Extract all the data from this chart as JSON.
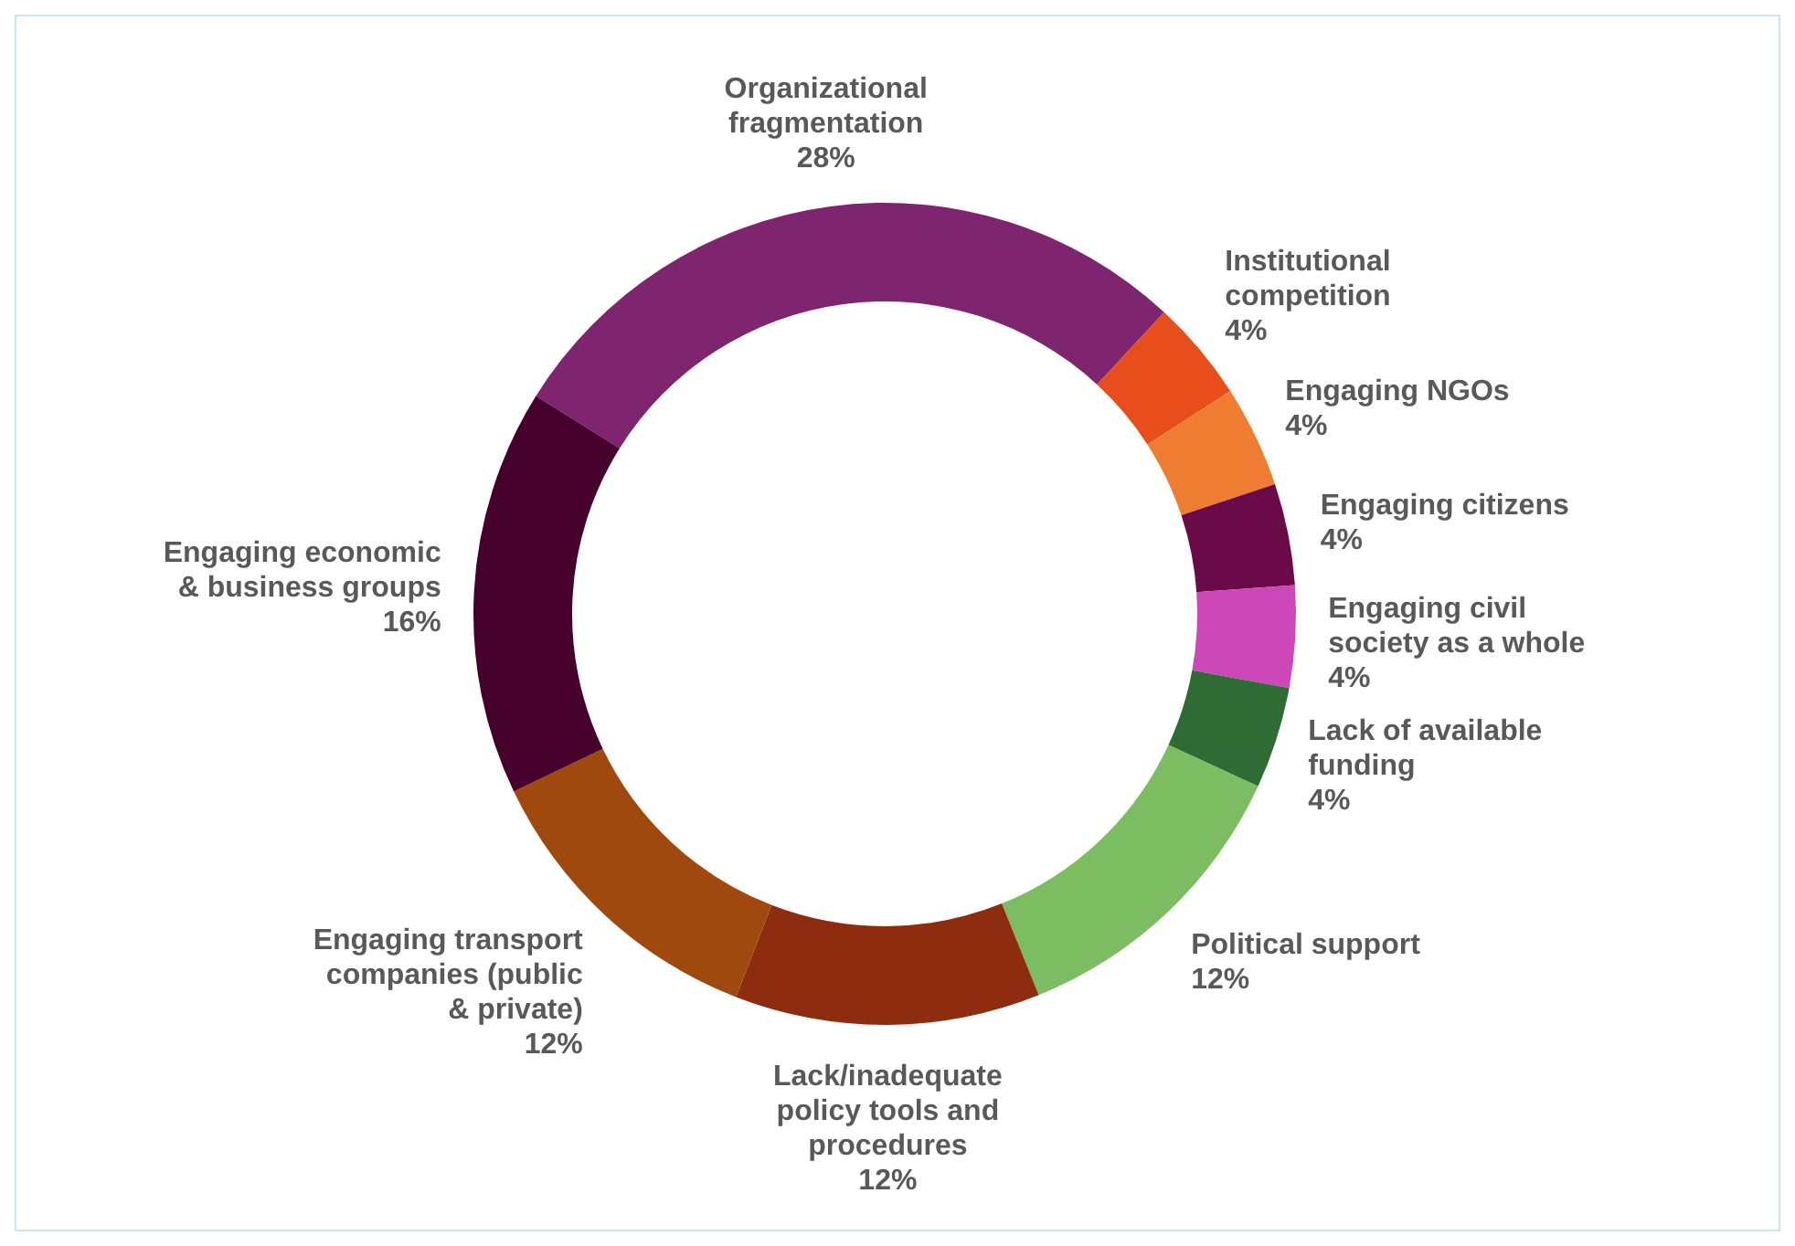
{
  "chart_data": {
    "type": "donut",
    "categories": [
      "Organizational fragmentation",
      "Institutional competition",
      "Engaging NGOs",
      "Engaging citizens",
      "Engaging civil society as a whole",
      "Lack of available funding",
      "Political support",
      "Lack/inadequate policy tools and procedures",
      "Engaging transport companies (public & private)",
      "Engaging economic & business groups"
    ],
    "values": [
      28,
      4,
      4,
      4,
      4,
      4,
      12,
      12,
      12,
      16
    ],
    "colors": [
      "#7f2570",
      "#e84e1c",
      "#ee7d32",
      "#6b0a48",
      "#cc48b8",
      "#2e6b35",
      "#7bbd60",
      "#8e2c10",
      "#a0490e",
      "#45002b"
    ],
    "value_labels": [
      "28%",
      "4%",
      "4%",
      "4%",
      "4%",
      "4%",
      "12%",
      "12%",
      "12%",
      "16%"
    ]
  }
}
